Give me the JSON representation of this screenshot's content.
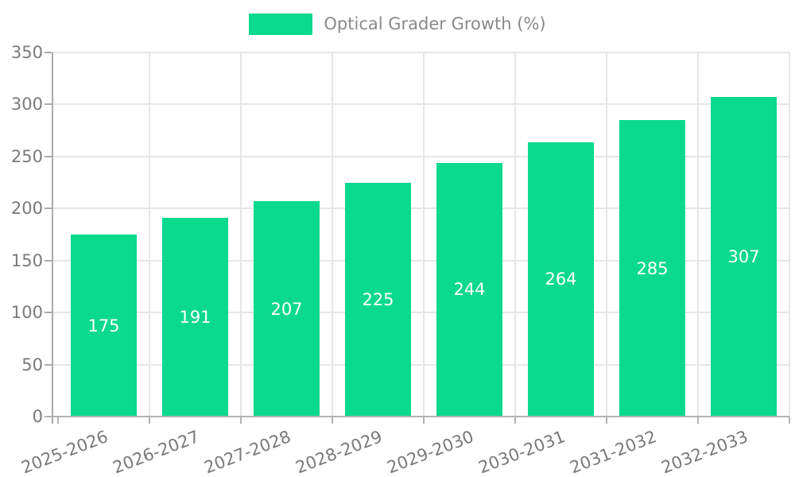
{
  "legend": {
    "label": "Optical Grader Growth (%)"
  },
  "chart_data": {
    "type": "bar",
    "title": "",
    "legend_entries": [
      "Optical Grader Growth (%)"
    ],
    "legend_position": "top",
    "categories": [
      "2025-2026",
      "2026-2027",
      "2027-2028",
      "2028-2029",
      "2029-2030",
      "2030-2031",
      "2031-2032",
      "2032-2033"
    ],
    "values": [
      175,
      191,
      207,
      225,
      244,
      264,
      285,
      307
    ],
    "value_labels": [
      "175",
      "191",
      "207",
      "225",
      "244",
      "264",
      "285",
      "307"
    ],
    "yticks": [
      "0",
      "50",
      "100",
      "150",
      "200",
      "250",
      "300",
      "350"
    ],
    "ylim": [
      0,
      350
    ],
    "ytick_step": 50,
    "grid": "on",
    "xlabel": "",
    "ylabel": "",
    "colors": {
      "bar": "#0bd98d",
      "value_label": "#ffffff",
      "axis_text": "#7a7a7a",
      "legend_text": "#8a8a8a",
      "gridline": "#e6e6e6",
      "axis_line": "#ababab"
    }
  }
}
